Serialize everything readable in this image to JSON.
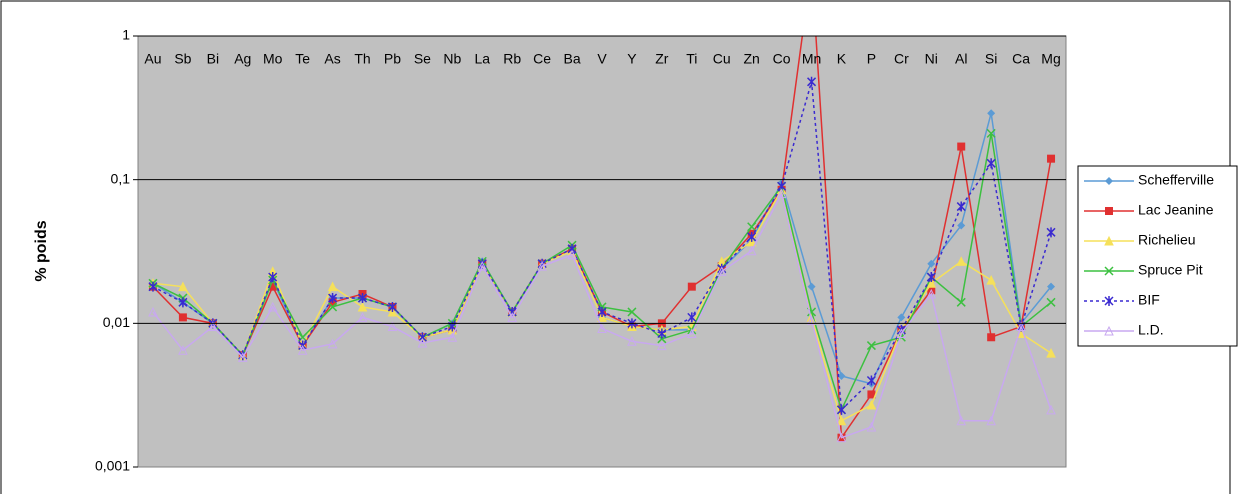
{
  "chart_data": {
    "type": "line",
    "y_label": "% poids",
    "y_scale": "log",
    "grid": true,
    "legend": "right",
    "categories": [
      "Au",
      "Sb",
      "Bi",
      "Ag",
      "Mo",
      "Te",
      "As",
      "Th",
      "Pb",
      "Se",
      "Nb",
      "La",
      "Rb",
      "Ce",
      "Ba",
      "V",
      "Y",
      "Zr",
      "Ti",
      "Cu",
      "Zn",
      "Co",
      "Mn",
      "K",
      "P",
      "Cr",
      "Ni",
      "Al",
      "Si",
      "Ca",
      "Mg"
    ],
    "ylim": [
      0.001,
      1
    ],
    "yticks": [
      {
        "value": 0.001,
        "label": "0,001"
      },
      {
        "value": 0.01,
        "label": "0,01"
      },
      {
        "value": 0.1,
        "label": "0,1"
      },
      1
    ],
    "series": [
      {
        "name": "Schefferville",
        "color": "#5b9bd5",
        "marker": "diamond",
        "dash": false,
        "values": [
          0.019,
          0.014,
          0.01,
          0.006,
          0.02,
          0.007,
          0.015,
          0.015,
          0.013,
          0.008,
          0.01,
          0.027,
          0.012,
          0.026,
          0.033,
          0.011,
          0.0095,
          0.009,
          0.009,
          0.024,
          0.038,
          0.095,
          0.018,
          0.0043,
          0.0038,
          0.011,
          0.026,
          0.048,
          0.29,
          0.01,
          0.018
        ]
      },
      {
        "name": "Lac Jeanine",
        "color": "#e03030",
        "marker": "square",
        "dash": false,
        "values": [
          0.018,
          0.011,
          0.01,
          0.006,
          0.018,
          0.007,
          0.014,
          0.016,
          0.013,
          0.008,
          0.009,
          0.026,
          0.012,
          0.026,
          0.033,
          0.012,
          0.0095,
          0.01,
          0.018,
          0.025,
          0.042,
          0.085,
          3,
          0.0016,
          0.0032,
          0.009,
          0.017,
          0.17,
          0.008,
          0.0095,
          0.14
        ]
      },
      {
        "name": "Richelieu",
        "color": "#f5e05a",
        "marker": "triangle",
        "dash": false,
        "values": [
          0.019,
          0.018,
          0.01,
          0.006,
          0.023,
          0.007,
          0.018,
          0.013,
          0.012,
          0.008,
          0.009,
          0.026,
          0.012,
          0.026,
          0.032,
          0.011,
          0.0095,
          0.009,
          0.0095,
          0.027,
          0.037,
          0.085,
          0.011,
          0.0021,
          0.0027,
          0.009,
          0.019,
          0.027,
          0.02,
          0.0085,
          0.0062
        ]
      },
      {
        "name": "Spruce Pit",
        "color": "#3cc040",
        "marker": "x",
        "dash": false,
        "values": [
          0.019,
          0.015,
          0.01,
          0.006,
          0.02,
          0.008,
          0.013,
          0.015,
          0.013,
          0.008,
          0.01,
          0.027,
          0.012,
          0.026,
          0.035,
          0.013,
          0.012,
          0.0078,
          0.009,
          0.024,
          0.047,
          0.09,
          0.012,
          0.0025,
          0.007,
          0.008,
          0.021,
          0.014,
          0.21,
          0.0095,
          0.014
        ]
      },
      {
        "name": "BIF",
        "color": "#3a2ad0",
        "marker": "star",
        "dash": true,
        "values": [
          0.018,
          0.014,
          0.01,
          0.006,
          0.021,
          0.007,
          0.015,
          0.015,
          0.013,
          0.008,
          0.0095,
          0.026,
          0.012,
          0.026,
          0.033,
          0.012,
          0.01,
          0.0085,
          0.011,
          0.024,
          0.04,
          0.09,
          0.48,
          0.0025,
          0.004,
          0.009,
          0.021,
          0.065,
          0.13,
          0.0095,
          0.043
        ]
      },
      {
        "name": "L.D.",
        "color": "#c8a8f0",
        "marker": "open-triangle",
        "dash": false,
        "values": [
          0.012,
          0.0065,
          0.0095,
          0.0058,
          0.013,
          0.0065,
          0.0072,
          0.011,
          0.0095,
          0.0073,
          0.008,
          0.025,
          0.011,
          0.025,
          0.03,
          0.0092,
          0.0075,
          0.007,
          0.0085,
          0.023,
          0.032,
          0.08,
          0.0105,
          0.0016,
          0.0019,
          0.0085,
          0.016,
          0.0021,
          0.0021,
          0.0095,
          0.0025
        ]
      }
    ]
  }
}
